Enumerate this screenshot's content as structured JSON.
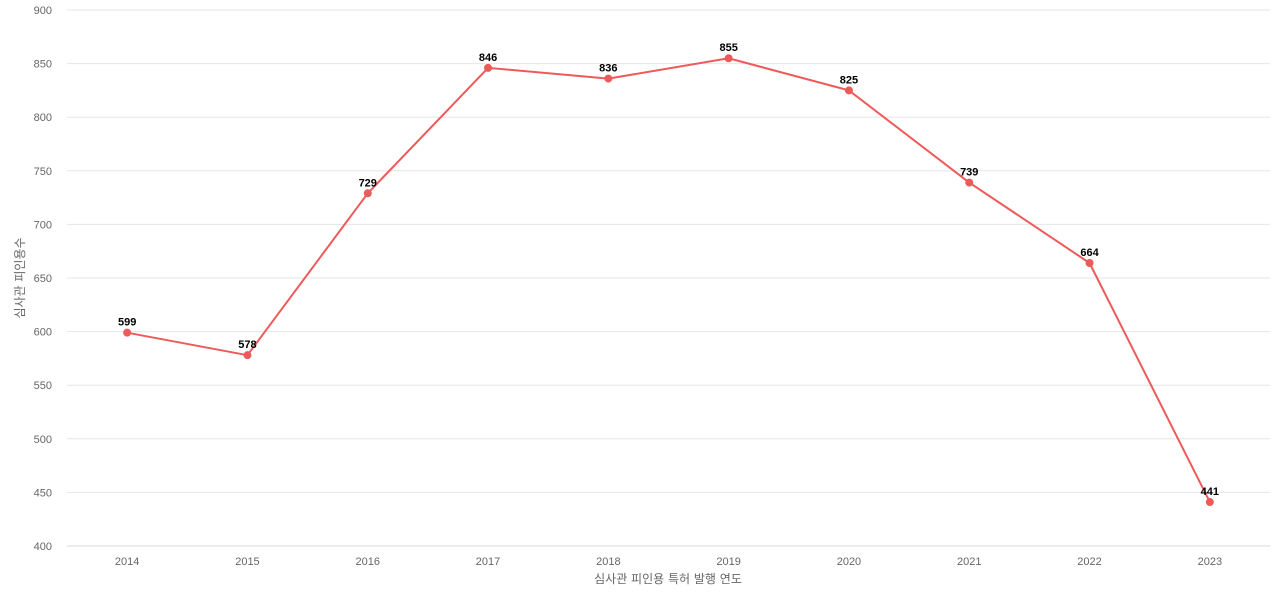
{
  "chart_data": {
    "type": "line",
    "title": "",
    "xlabel": "심사관 피인용 특허 발행 연도",
    "ylabel": "심사관 피인용수",
    "x": [
      "2014",
      "2015",
      "2016",
      "2017",
      "2018",
      "2019",
      "2020",
      "2021",
      "2022",
      "2023"
    ],
    "series": [
      {
        "values": [
          599,
          578,
          729,
          846,
          836,
          855,
          825,
          739,
          664,
          441
        ],
        "color": "#ee5a5a"
      }
    ],
    "ylim": [
      400,
      900
    ],
    "yticks": [
      400,
      450,
      500,
      550,
      600,
      650,
      700,
      750,
      800,
      850,
      900
    ],
    "grid": true,
    "data_labels": true,
    "legend": "none"
  }
}
